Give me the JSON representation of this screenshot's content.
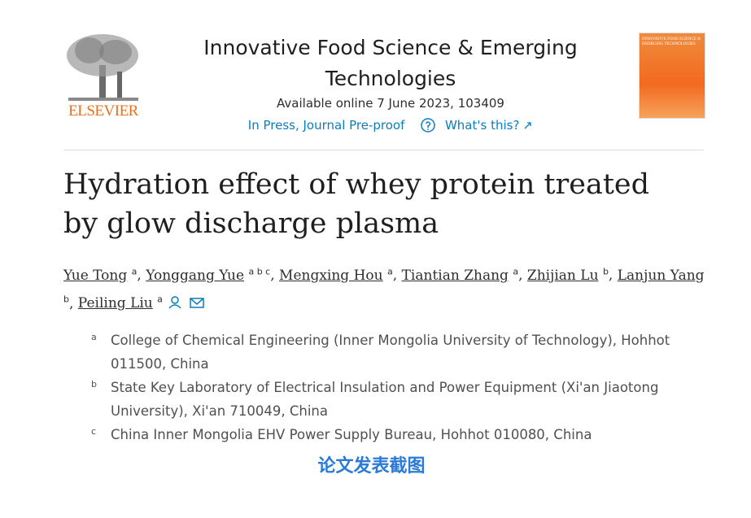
{
  "header": {
    "publisher": "ELSEVIER",
    "journal_title": "Innovative Food Science & Emerging Technologies",
    "availability": "Available online 7 June 2023, 103409",
    "status": "In Press, Journal Pre-proof",
    "help_link": "What's this?",
    "cover_title": "INNOVATIVE FOOD SCIENCE & EMERGING TECHNOLOGIES"
  },
  "article": {
    "title": "Hydration effect of whey protein treated by glow discharge plasma",
    "separator": ",",
    "authors": [
      {
        "name": "Yue Tong",
        "affiliations": "a"
      },
      {
        "name": "Yonggang Yue",
        "affiliations": "a b c"
      },
      {
        "name": "Mengxing Hou",
        "affiliations": "a"
      },
      {
        "name": "Tiantian Zhang",
        "affiliations": "a"
      },
      {
        "name": "Zhijian Lu",
        "affiliations": "b"
      },
      {
        "name": "Lanjun Yang",
        "affiliations": "b"
      },
      {
        "name": "Peiling Liu",
        "affiliations": "a"
      }
    ],
    "affiliations": [
      {
        "label": "a",
        "text": "College of Chemical Engineering (Inner Mongolia University of Technology), Hohhot 011500, China"
      },
      {
        "label": "b",
        "text": "State Key Laboratory of Electrical Insulation and Power Equipment (Xi'an Jiaotong University), Xi'an 710049, China"
      },
      {
        "label": "c",
        "text": "China Inner Mongolia EHV Power Supply Bureau, Hohhot 010080, China"
      }
    ]
  },
  "caption": "论文发表截图"
}
